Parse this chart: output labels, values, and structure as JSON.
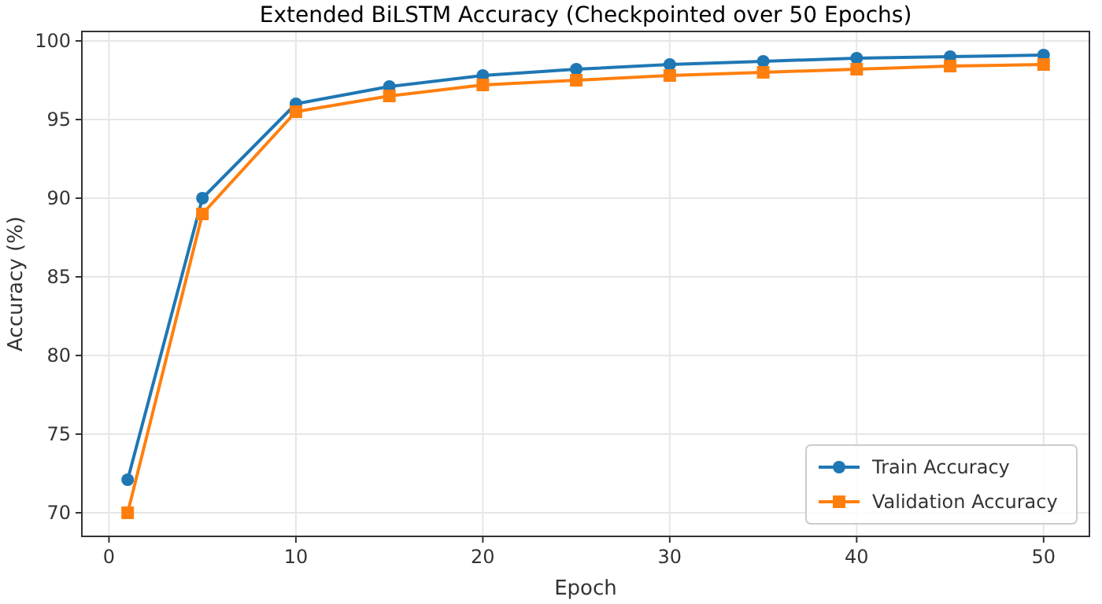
{
  "chart_data": {
    "type": "line",
    "title": "Extended BiLSTM Accuracy (Checkpointed over 50 Epochs)",
    "xlabel": "Epoch",
    "ylabel": "Accuracy (%)",
    "x": [
      1,
      5,
      10,
      15,
      20,
      25,
      30,
      35,
      40,
      45,
      50
    ],
    "series": [
      {
        "name": "Train Accuracy",
        "color": "#1f77b4",
        "marker": "circle",
        "values": [
          72.1,
          90,
          96,
          97.1,
          97.8,
          98.2,
          98.5,
          98.7,
          98.9,
          99.0,
          99.1
        ]
      },
      {
        "name": "Validation Accuracy",
        "color": "#ff7f0e",
        "marker": "square",
        "values": [
          70,
          89,
          95.5,
          96.5,
          97.2,
          97.5,
          97.8,
          98.0,
          98.2,
          98.4,
          98.5
        ]
      }
    ],
    "xlim": [
      -1.45,
      52.45
    ],
    "xticks": [
      0,
      10,
      20,
      30,
      40,
      50
    ],
    "ylim": [
      68.5,
      100.6
    ],
    "yticks": [
      70,
      75,
      80,
      85,
      90,
      95,
      100
    ],
    "grid": true,
    "legend": "bottom right",
    "line_style": "solid"
  }
}
